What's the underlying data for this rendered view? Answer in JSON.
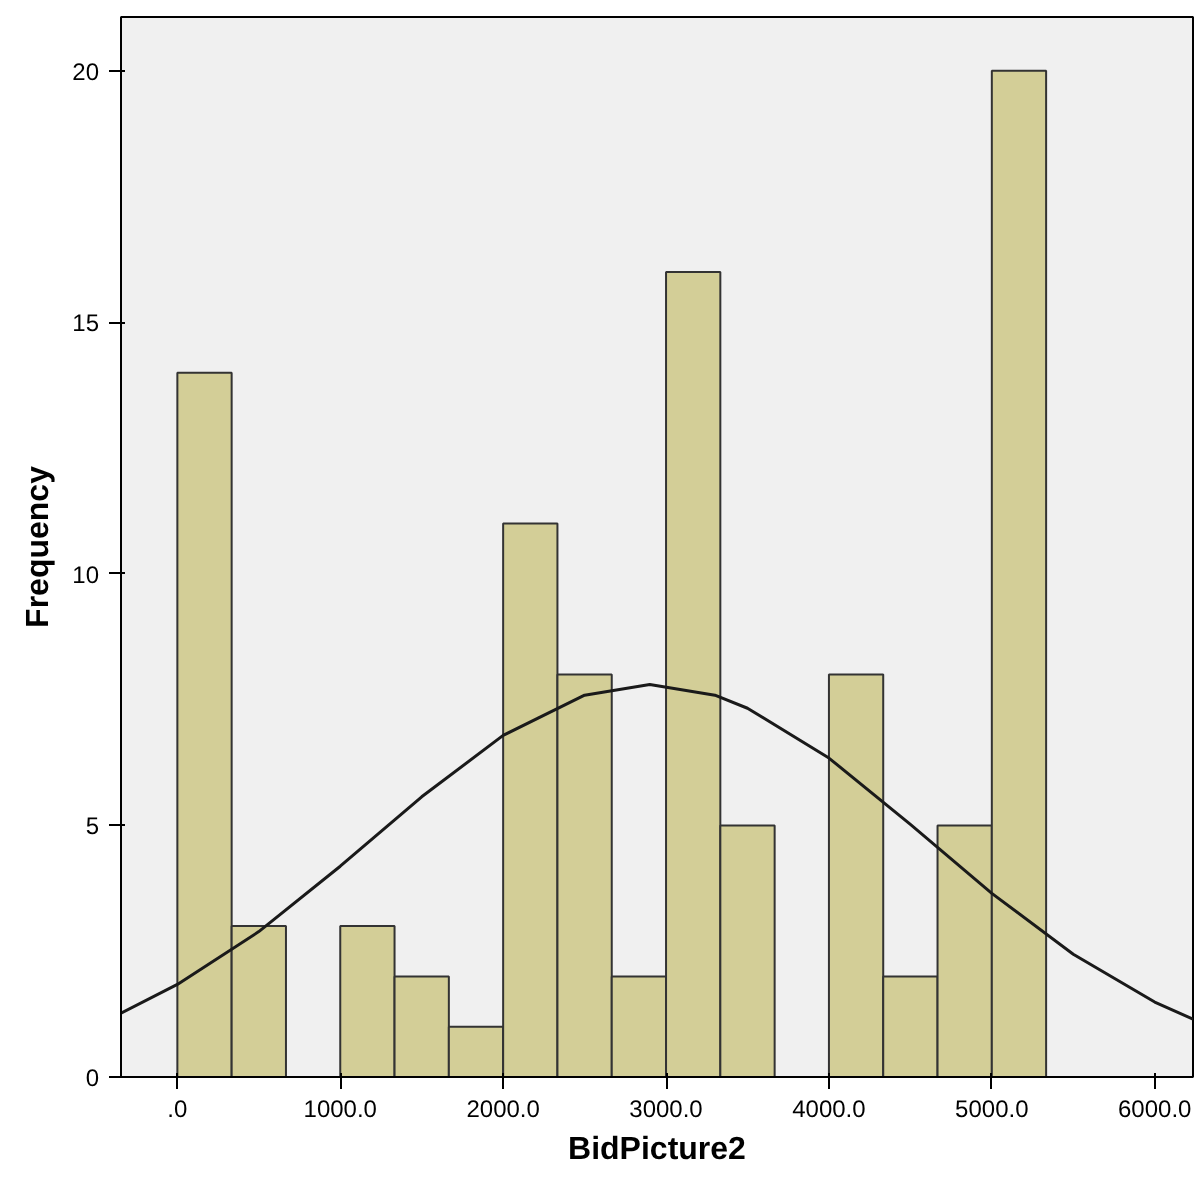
{
  "chart_data": {
    "type": "histogram",
    "xlabel": "BidPicture2",
    "ylabel": "Frequency",
    "bins": [
      0,
      333.3,
      666.7,
      1000,
      1333.3,
      1666.7,
      2000,
      2333.3,
      2666.7,
      3000,
      3333.3,
      3666.7,
      4000,
      4333.3,
      4666.7,
      5000,
      5333.3
    ],
    "values": [
      14,
      3,
      0,
      3,
      2,
      1,
      11,
      8,
      2,
      16,
      5,
      0,
      8,
      2,
      5,
      20
    ],
    "color": "#d3ce97",
    "series": [
      {
        "type": "line",
        "color": "#1a1a1a",
        "x": [
          -346,
          0,
          500,
          1000,
          1500,
          2000,
          2500,
          2900,
          3300,
          3500,
          4000,
          4500,
          5000,
          5500,
          6000,
          6235
        ],
        "values": [
          1.27,
          1.84,
          2.89,
          4.19,
          5.57,
          6.79,
          7.59,
          7.8,
          7.59,
          7.33,
          6.34,
          5.02,
          3.65,
          2.44,
          1.49,
          1.15
        ]
      }
    ],
    "xlim": [
      -346,
      6235
    ],
    "ylim": [
      0,
      21.07
    ],
    "xticks": [
      {
        "value": 0,
        "label": ".0"
      },
      {
        "value": 1000,
        "label": "1000.0"
      },
      {
        "value": 2000,
        "label": "2000.0"
      },
      {
        "value": 3000,
        "label": "3000.0"
      },
      {
        "value": 4000,
        "label": "4000.0"
      },
      {
        "value": 5000,
        "label": "5000.0"
      },
      {
        "value": 6000,
        "label": "6000.0"
      }
    ],
    "yticks": [
      0,
      5,
      10,
      15,
      20
    ],
    "grid": false
  }
}
